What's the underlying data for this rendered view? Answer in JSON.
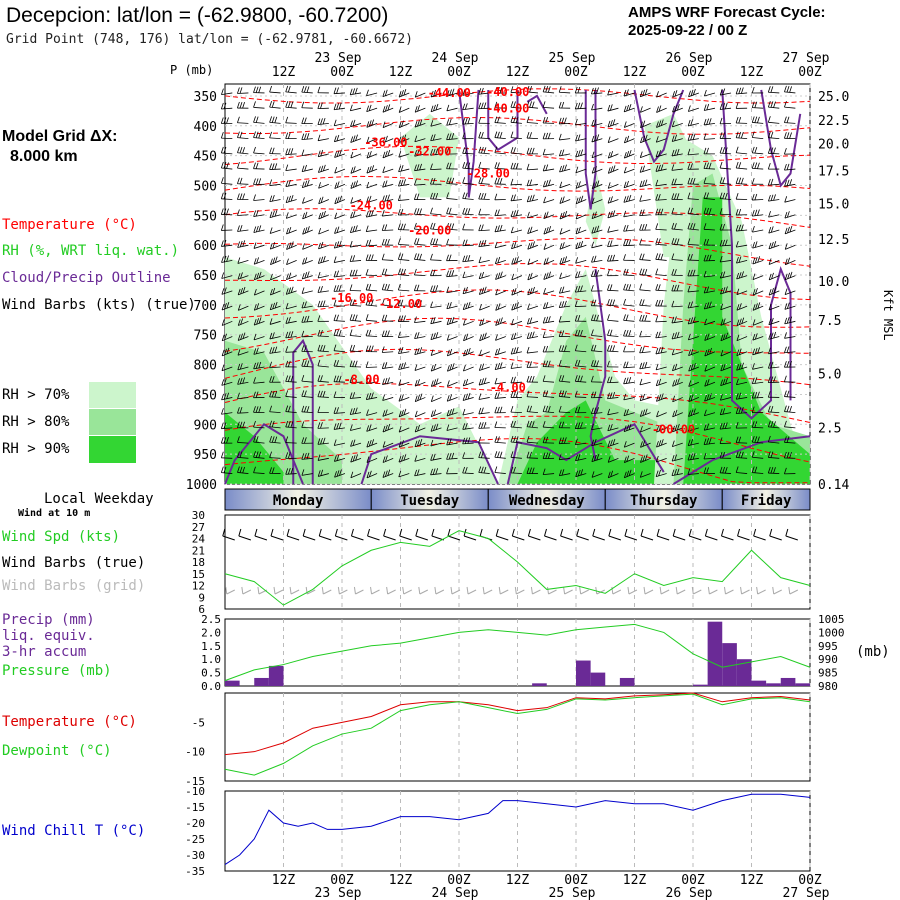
{
  "header": {
    "title": "Decepcion:  lat/lon = (-62.9800, -60.7200)",
    "grid_point": "Grid Point (748, 176) lat/lon = (-62.9781, -60.6672)",
    "cycle_label": "AMPS WRF Forecast Cycle:",
    "cycle_value": "2025-09-22 / 00  Z"
  },
  "model": {
    "label": "Model Grid ΔX:",
    "value": "8.000 km"
  },
  "legend": {
    "temperature": "Temperature (°C)",
    "rh": "RH (%, WRT liq. wat.)",
    "cloud": "Cloud/Precip Outline",
    "wind": "Wind Barbs (kts) (true)",
    "rh70": "RH > 70%",
    "rh80": "RH > 80%",
    "rh90": "RH > 90%"
  },
  "colors": {
    "temperature": "#ff0000",
    "rh_label": "#22cc22",
    "cloud": "#6a2a96",
    "rh70": "#ccf5cc",
    "rh80": "#99e599",
    "rh90": "#33d633",
    "wind_chill": "#0000cc",
    "day_bar": "#7a8cc8"
  },
  "time_axis": {
    "top_dates": [
      "23 Sep",
      "24 Sep",
      "25 Sep",
      "26 Sep",
      "27 Sep"
    ],
    "hour_labels": [
      "12Z",
      "00Z",
      "12Z",
      "00Z",
      "12Z",
      "00Z",
      "12Z",
      "00Z",
      "12Z",
      "00Z"
    ],
    "bottom_hours": [
      "12Z",
      "00Z",
      "12Z",
      "00Z",
      "12Z",
      "00Z",
      "12Z",
      "00Z",
      "12Z",
      "00Z"
    ],
    "bottom_dates": [
      "23 Sep",
      "24 Sep",
      "25 Sep",
      "26 Sep",
      "27 Sep"
    ]
  },
  "weekday": {
    "label": "Local Weekday",
    "wind_note": "Wind at 10 m",
    "days": [
      "Monday",
      "Tuesday",
      "Wednesday",
      "Thursday",
      "Friday"
    ]
  },
  "chart_data": [
    {
      "type": "heatmap",
      "name": "cross_section",
      "y_axis_label": "P (mb)",
      "pressure_levels": [
        350,
        400,
        450,
        500,
        550,
        600,
        650,
        700,
        750,
        800,
        850,
        900,
        950,
        1000
      ],
      "right_axis_label": "Kft MSL",
      "height_ticks": [
        "25.0",
        "22.5",
        "20.0",
        "17.5",
        "15.0",
        "12.5",
        "10.0",
        "7.5",
        "5.0",
        "2.5",
        "0.14"
      ],
      "temperature_labels": [
        "-44.00",
        "-40.00",
        "-40.00",
        "-36.00",
        "-32.00",
        "-28.00",
        "-24.00",
        "-20.00",
        "-16.00",
        "-12.00",
        "-8.00",
        "-4.00",
        "-00.00"
      ],
      "x_ticks_hours": [
        12,
        24,
        36,
        48,
        60,
        72,
        84,
        96,
        108,
        120
      ]
    },
    {
      "type": "line",
      "name": "wind",
      "label": "Wind Spd (kts)",
      "label2": "Wind Barbs (true)",
      "label3": "Wind Barbs (grid)",
      "yticks": [
        "30",
        "27",
        "24",
        "21",
        "18",
        "15",
        "12",
        "9",
        "6"
      ],
      "ylim": [
        6,
        30
      ],
      "x_hours": [
        0,
        6,
        12,
        18,
        24,
        30,
        36,
        42,
        48,
        54,
        60,
        66,
        72,
        78,
        84,
        90,
        96,
        102,
        108,
        114,
        120
      ],
      "values": [
        15,
        13,
        7,
        11,
        17,
        21,
        23,
        22,
        26,
        24,
        18,
        11,
        12,
        10,
        15,
        12,
        14,
        13,
        21,
        14,
        12
      ]
    },
    {
      "type": "bar",
      "name": "precip_pressure",
      "label": "Precip (mm)",
      "label2": "liq. equiv.",
      "label3": "3-hr accum",
      "label4": "Pressure (mb)",
      "left_ticks": [
        "2.5",
        "2.0",
        "1.5",
        "1.0",
        "0.5",
        "0.0"
      ],
      "right_ticks": [
        "1005",
        "1000",
        "995",
        "990",
        "985",
        "980"
      ],
      "right_unit": "(mb)",
      "precip_x_hours": [
        1.5,
        7.5,
        10.5,
        28.5,
        31.5,
        34.5,
        37.5,
        40.5,
        43.5,
        46.5,
        49.5,
        52.5,
        55.5,
        58.5,
        61.5,
        64.5,
        67.5,
        70.5,
        73.5,
        76.5,
        79.5,
        82.5,
        85.5,
        88.5,
        91.5,
        94.5,
        97.5,
        100.5,
        103.5,
        106.5,
        109.5,
        112.5,
        115.5,
        118.5
      ],
      "precip_values": [
        0.2,
        0.3,
        0.75,
        0,
        0,
        0,
        0,
        0,
        0,
        0,
        0,
        0,
        0,
        0,
        0,
        0.1,
        0,
        0,
        0.95,
        0.5,
        0,
        0.3,
        0,
        0,
        0,
        0,
        0.05,
        2.4,
        1.6,
        1.0,
        0.2,
        0.1,
        0.3,
        0.1
      ],
      "pressure_x_hours": [
        0,
        6,
        12,
        18,
        24,
        30,
        36,
        42,
        48,
        54,
        60,
        66,
        72,
        78,
        84,
        90,
        96,
        102,
        108,
        114,
        120
      ],
      "pressure_values": [
        982,
        986,
        988,
        991,
        993,
        995,
        996,
        998,
        1000,
        1001,
        1000,
        999,
        1001,
        1002,
        1003,
        1000,
        992,
        987,
        989,
        991,
        987
      ]
    },
    {
      "type": "line",
      "name": "temperature_dewpoint",
      "label": "Temperature (°C)",
      "label2": "Dewpoint (°C)",
      "yticks": [
        "-5",
        "-10",
        "-15"
      ],
      "ylim": [
        -15,
        0
      ],
      "x_hours": [
        0,
        6,
        12,
        18,
        24,
        30,
        36,
        42,
        48,
        54,
        60,
        66,
        72,
        78,
        84,
        90,
        96,
        102,
        108,
        114,
        120
      ],
      "temperature": [
        -10.5,
        -10,
        -8.5,
        -6,
        -5,
        -4,
        -2,
        -1.5,
        -1.5,
        -2,
        -3,
        -2.5,
        -0.8,
        -1,
        -0.5,
        -0.3,
        0,
        -1.5,
        -0.8,
        -0.6,
        -1.2
      ],
      "dewpoint": [
        -13,
        -14,
        -12,
        -9,
        -7,
        -6,
        -3,
        -2,
        -1.5,
        -2.5,
        -3.5,
        -2.8,
        -1,
        -1.2,
        -0.8,
        -0.5,
        -0.2,
        -2,
        -1,
        -0.8,
        -1.5
      ]
    },
    {
      "type": "line",
      "name": "wind_chill",
      "label": "Wind Chill T (°C)",
      "yticks": [
        "-10",
        "-15",
        "-20",
        "-25",
        "-30",
        "-35"
      ],
      "ylim": [
        -35,
        -10
      ],
      "x_hours": [
        0,
        3,
        6,
        9,
        12,
        15,
        18,
        21,
        24,
        30,
        36,
        42,
        48,
        54,
        57,
        60,
        66,
        72,
        78,
        84,
        90,
        96,
        102,
        108,
        114,
        120
      ],
      "values": [
        -33,
        -30,
        -25,
        -16,
        -20,
        -21,
        -20,
        -22,
        -22,
        -21,
        -18,
        -18,
        -19,
        -17,
        -13,
        -13,
        -14,
        -15,
        -13,
        -14,
        -14,
        -16,
        -13,
        -11,
        -11,
        -12
      ]
    }
  ]
}
